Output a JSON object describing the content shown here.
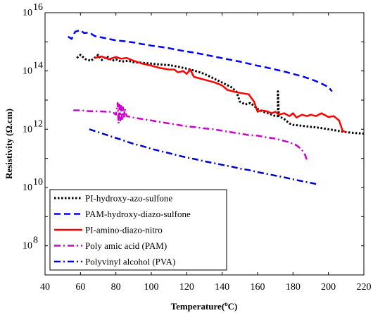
{
  "chart_data": {
    "type": "line",
    "xlabel": "Temperature(°C)",
    "ylabel": "Resistivity (Ω.cm)",
    "xlim": [
      40,
      220
    ],
    "ylim_log10": [
      7,
      16
    ],
    "y_scale": "log",
    "grid": false,
    "legend_placement": "bottom-left",
    "x_ticks": [
      40,
      60,
      80,
      100,
      120,
      140,
      160,
      180,
      200,
      220
    ],
    "x_tick_labels": [
      "40",
      "60",
      "80",
      "100",
      "120",
      "140",
      "160",
      "180",
      "200",
      "220"
    ],
    "y_ticks": [
      8,
      10,
      12,
      14,
      16
    ],
    "y_tick_labels": [
      "10",
      "10",
      "10",
      "10",
      "10"
    ],
    "y_tick_exponents": [
      "8",
      "10",
      "12",
      "14",
      "16"
    ],
    "series": [
      {
        "name": "PI-hydroxy-azo-sulfone",
        "color": "#000000",
        "dash": "dotted",
        "points": [
          [
            58,
            14.45
          ],
          [
            60,
            14.55
          ],
          [
            63,
            14.4
          ],
          [
            66,
            14.35
          ],
          [
            70,
            14.55
          ],
          [
            72,
            14.38
          ],
          [
            75,
            14.5
          ],
          [
            78,
            14.35
          ],
          [
            80,
            14.4
          ],
          [
            83,
            14.32
          ],
          [
            87,
            14.35
          ],
          [
            90,
            14.3
          ],
          [
            95,
            14.28
          ],
          [
            100,
            14.25
          ],
          [
            105,
            14.22
          ],
          [
            110,
            14.2
          ],
          [
            115,
            14.15
          ],
          [
            120,
            14.08
          ],
          [
            125,
            14.0
          ],
          [
            130,
            13.9
          ],
          [
            135,
            13.75
          ],
          [
            140,
            13.6
          ],
          [
            145,
            13.45
          ],
          [
            148,
            13.3
          ],
          [
            150,
            12.95
          ],
          [
            153,
            12.85
          ],
          [
            156,
            12.9
          ],
          [
            158,
            12.8
          ],
          [
            160,
            12.7
          ],
          [
            163,
            12.6
          ],
          [
            166,
            12.55
          ],
          [
            170,
            12.45
          ],
          [
            171.5,
            12.45
          ],
          [
            171.5,
            13.3
          ],
          [
            172,
            12.45
          ],
          [
            175,
            12.35
          ],
          [
            178,
            12.2
          ],
          [
            180,
            12.15
          ],
          [
            185,
            12.12
          ],
          [
            190,
            12.08
          ],
          [
            195,
            12.05
          ],
          [
            200,
            12.0
          ],
          [
            205,
            11.95
          ],
          [
            210,
            11.9
          ],
          [
            215,
            11.87
          ],
          [
            220,
            11.85
          ]
        ]
      },
      {
        "name": "PAM-hydroxy-diazo-sulfone",
        "color": "#0000ff",
        "dash": "dashed",
        "points": [
          [
            53,
            15.18
          ],
          [
            55,
            15.1
          ],
          [
            57,
            15.35
          ],
          [
            60,
            15.4
          ],
          [
            62,
            15.3
          ],
          [
            65,
            15.32
          ],
          [
            68,
            15.2
          ],
          [
            72,
            15.15
          ],
          [
            76,
            15.1
          ],
          [
            80,
            15.05
          ],
          [
            85,
            15.02
          ],
          [
            90,
            14.98
          ],
          [
            95,
            14.92
          ],
          [
            100,
            14.87
          ],
          [
            105,
            14.83
          ],
          [
            110,
            14.78
          ],
          [
            115,
            14.72
          ],
          [
            120,
            14.67
          ],
          [
            125,
            14.62
          ],
          [
            130,
            14.56
          ],
          [
            135,
            14.5
          ],
          [
            140,
            14.44
          ],
          [
            145,
            14.38
          ],
          [
            150,
            14.32
          ],
          [
            155,
            14.25
          ],
          [
            160,
            14.18
          ],
          [
            165,
            14.12
          ],
          [
            170,
            14.05
          ],
          [
            175,
            13.98
          ],
          [
            180,
            13.9
          ],
          [
            185,
            13.82
          ],
          [
            190,
            13.72
          ],
          [
            195,
            13.6
          ],
          [
            200,
            13.45
          ],
          [
            202,
            13.3
          ]
        ]
      },
      {
        "name": "PI-amino-diazo-nitro",
        "color": "#ff0000",
        "dash": "solid",
        "points": [
          [
            68,
            14.45
          ],
          [
            72,
            14.5
          ],
          [
            76,
            14.4
          ],
          [
            80,
            14.48
          ],
          [
            83,
            14.42
          ],
          [
            86,
            14.45
          ],
          [
            90,
            14.35
          ],
          [
            95,
            14.25
          ],
          [
            100,
            14.18
          ],
          [
            105,
            14.1
          ],
          [
            110,
            14.05
          ],
          [
            113,
            14.05
          ],
          [
            115,
            13.95
          ],
          [
            118,
            14.0
          ],
          [
            120,
            13.9
          ],
          [
            122,
            14.05
          ],
          [
            124,
            13.8
          ],
          [
            127,
            13.75
          ],
          [
            130,
            13.7
          ],
          [
            133,
            13.65
          ],
          [
            136,
            13.6
          ],
          [
            140,
            13.5
          ],
          [
            143,
            13.35
          ],
          [
            146,
            13.3
          ],
          [
            150,
            13.25
          ],
          [
            155,
            13.2
          ],
          [
            158,
            12.95
          ],
          [
            160,
            12.6
          ],
          [
            162,
            12.65
          ],
          [
            165,
            12.62
          ],
          [
            168,
            12.55
          ],
          [
            170,
            12.6
          ],
          [
            172,
            12.5
          ],
          [
            175,
            12.55
          ],
          [
            178,
            12.45
          ],
          [
            180,
            12.55
          ],
          [
            182,
            12.4
          ],
          [
            185,
            12.5
          ],
          [
            188,
            12.45
          ],
          [
            190,
            12.5
          ],
          [
            193,
            12.45
          ],
          [
            196,
            12.55
          ],
          [
            200,
            12.42
          ],
          [
            203,
            12.45
          ],
          [
            206,
            12.3
          ],
          [
            208,
            11.95
          ],
          [
            210,
            11.9
          ]
        ]
      },
      {
        "name": "Poly amic acid (PAM)",
        "color": "#cc00cc",
        "dash": "dashdot",
        "points": [
          [
            56,
            12.65
          ],
          [
            60,
            12.65
          ],
          [
            65,
            12.62
          ],
          [
            70,
            12.62
          ],
          [
            75,
            12.6
          ],
          [
            78,
            12.6
          ],
          [
            80,
            12.5
          ],
          [
            81,
            12.9
          ],
          [
            81.5,
            12.2
          ],
          [
            82,
            12.85
          ],
          [
            82.5,
            12.3
          ],
          [
            83,
            12.8
          ],
          [
            83.5,
            12.35
          ],
          [
            84,
            12.75
          ],
          [
            84.5,
            12.4
          ],
          [
            85,
            12.7
          ],
          [
            86,
            12.45
          ],
          [
            90,
            12.4
          ],
          [
            95,
            12.35
          ],
          [
            100,
            12.3
          ],
          [
            105,
            12.25
          ],
          [
            110,
            12.2
          ],
          [
            115,
            12.15
          ],
          [
            120,
            12.1
          ],
          [
            125,
            12.07
          ],
          [
            130,
            12.03
          ],
          [
            135,
            12.0
          ],
          [
            140,
            11.95
          ],
          [
            145,
            11.9
          ],
          [
            150,
            11.85
          ],
          [
            155,
            11.8
          ],
          [
            160,
            11.78
          ],
          [
            165,
            11.72
          ],
          [
            170,
            11.68
          ],
          [
            175,
            11.6
          ],
          [
            178,
            11.55
          ],
          [
            182,
            11.45
          ],
          [
            185,
            11.3
          ],
          [
            187,
            11.1
          ],
          [
            188,
            10.9
          ]
        ]
      },
      {
        "name": "Polyvinyl alcohol (PVA)",
        "color": "#0000cc",
        "dash": "dashdot",
        "points": [
          [
            65,
            12.0
          ],
          [
            70,
            11.9
          ],
          [
            75,
            11.8
          ],
          [
            80,
            11.7
          ],
          [
            85,
            11.6
          ],
          [
            90,
            11.5
          ],
          [
            95,
            11.42
          ],
          [
            100,
            11.33
          ],
          [
            105,
            11.25
          ],
          [
            110,
            11.18
          ],
          [
            115,
            11.1
          ],
          [
            120,
            11.03
          ],
          [
            125,
            10.97
          ],
          [
            130,
            10.9
          ],
          [
            135,
            10.84
          ],
          [
            140,
            10.78
          ],
          [
            145,
            10.72
          ],
          [
            150,
            10.65
          ],
          [
            155,
            10.6
          ],
          [
            160,
            10.53
          ],
          [
            165,
            10.47
          ],
          [
            170,
            10.41
          ],
          [
            175,
            10.35
          ],
          [
            180,
            10.28
          ],
          [
            185,
            10.22
          ],
          [
            190,
            10.16
          ],
          [
            193,
            10.12
          ]
        ]
      }
    ]
  }
}
